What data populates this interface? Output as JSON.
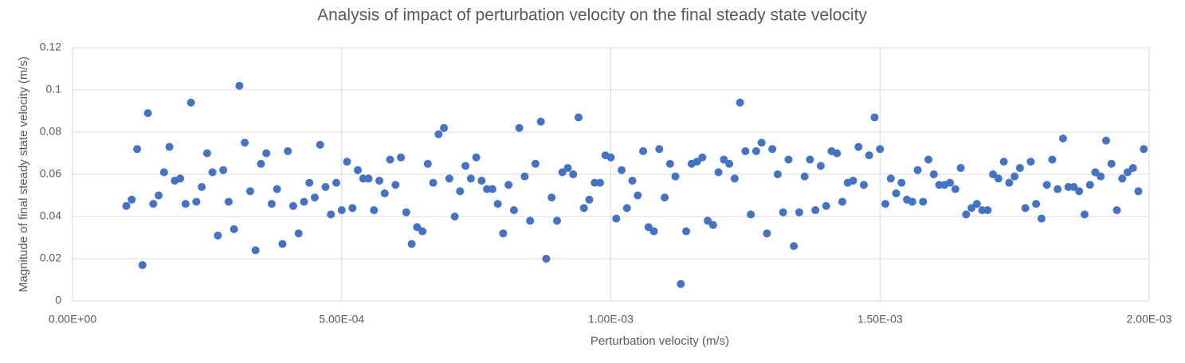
{
  "chart_data": {
    "type": "scatter",
    "title": "Analysis of impact of perturbation velocity on the final steady state velocity",
    "x_label": "Perturbation velocity (m/s)",
    "y_label": "Magnitude of final steady state velocity (m/s)",
    "grid": true,
    "xlim": [
      0,
      0.002
    ],
    "ylim": [
      0,
      0.12
    ],
    "xticks": [
      {
        "value": 0,
        "label": "0.00E+00"
      },
      {
        "value": 0.0005,
        "label": "5.00E-04"
      },
      {
        "value": 0.001,
        "label": "1.00E-03"
      },
      {
        "value": 0.0015,
        "label": "1.50E-03"
      },
      {
        "value": 0.002,
        "label": "2.00E-03"
      }
    ],
    "yticks": [
      0,
      0.02,
      0.04,
      0.06,
      0.08,
      0.1,
      0.12
    ],
    "series": [
      {
        "color": "#4472c4",
        "x": [
          0.0001,
          0.00011,
          0.00012,
          0.00013,
          0.00014,
          0.00015,
          0.00016,
          0.00017,
          0.00018,
          0.00019,
          0.0002,
          0.00021,
          0.00022,
          0.00023,
          0.00024,
          0.00025,
          0.00026,
          0.00027,
          0.00028,
          0.00029,
          0.0003,
          0.00031,
          0.00032,
          0.00033,
          0.00034,
          0.00035,
          0.00036,
          0.00037,
          0.00038,
          0.00039,
          0.0004,
          0.00041,
          0.00042,
          0.00043,
          0.00044,
          0.00045,
          0.00046,
          0.00047,
          0.00048,
          0.00049,
          0.0005,
          0.00051,
          0.00052,
          0.00053,
          0.00054,
          0.00055,
          0.00056,
          0.00057,
          0.00058,
          0.00059,
          0.0006,
          0.00061,
          0.00062,
          0.00063,
          0.00064,
          0.00065,
          0.00066,
          0.00067,
          0.00068,
          0.00069,
          0.0007,
          0.00071,
          0.00072,
          0.00073,
          0.00074,
          0.00075,
          0.00076,
          0.00077,
          0.00078,
          0.00079,
          0.0008,
          0.00081,
          0.00082,
          0.00083,
          0.00084,
          0.00085,
          0.00086,
          0.00087,
          0.00088,
          0.00089,
          0.0009,
          0.00091,
          0.00092,
          0.00093,
          0.00094,
          0.00095,
          0.00096,
          0.00097,
          0.00098,
          0.00099,
          0.001,
          0.00101,
          0.00102,
          0.00103,
          0.00104,
          0.00105,
          0.00106,
          0.00107,
          0.00108,
          0.00109,
          0.0011,
          0.00111,
          0.00112,
          0.00113,
          0.00114,
          0.00115,
          0.00116,
          0.00117,
          0.00118,
          0.00119,
          0.0012,
          0.00121,
          0.00122,
          0.00123,
          0.00124,
          0.00125,
          0.00126,
          0.00127,
          0.00128,
          0.00129,
          0.0013,
          0.00131,
          0.00132,
          0.00133,
          0.00134,
          0.00135,
          0.00136,
          0.00137,
          0.00138,
          0.00139,
          0.0014,
          0.00141,
          0.00142,
          0.00143,
          0.00144,
          0.00145,
          0.00146,
          0.00147,
          0.00148,
          0.00149,
          0.0015,
          0.00151,
          0.00152,
          0.00153,
          0.00154,
          0.00155,
          0.00156,
          0.00157,
          0.00158,
          0.00159,
          0.0016,
          0.00161,
          0.00162,
          0.00163,
          0.00164,
          0.00165,
          0.00166,
          0.00167,
          0.00168,
          0.00169,
          0.0017,
          0.00171,
          0.00172,
          0.00173,
          0.00174,
          0.00175,
          0.00176,
          0.00177,
          0.00178,
          0.00179,
          0.0018,
          0.00181,
          0.00182,
          0.00183,
          0.00184,
          0.00185,
          0.00186,
          0.00187,
          0.00188,
          0.00189,
          0.0019,
          0.00191,
          0.00192,
          0.00193,
          0.00194,
          0.00195,
          0.00196,
          0.00197,
          0.00198,
          0.00199
        ],
        "values": [
          0.045,
          0.048,
          0.072,
          0.017,
          0.089,
          0.046,
          0.05,
          0.061,
          0.073,
          0.057,
          0.058,
          0.046,
          0.094,
          0.047,
          0.054,
          0.07,
          0.061,
          0.031,
          0.062,
          0.047,
          0.034,
          0.102,
          0.075,
          0.052,
          0.024,
          0.065,
          0.07,
          0.046,
          0.053,
          0.027,
          0.071,
          0.045,
          0.032,
          0.047,
          0.056,
          0.049,
          0.074,
          0.054,
          0.041,
          0.056,
          0.043,
          0.066,
          0.044,
          0.062,
          0.058,
          0.058,
          0.043,
          0.057,
          0.051,
          0.067,
          0.055,
          0.068,
          0.042,
          0.027,
          0.035,
          0.033,
          0.065,
          0.056,
          0.079,
          0.082,
          0.058,
          0.04,
          0.052,
          0.064,
          0.058,
          0.068,
          0.057,
          0.053,
          0.053,
          0.046,
          0.032,
          0.055,
          0.043,
          0.082,
          0.059,
          0.038,
          0.065,
          0.085,
          0.02,
          0.049,
          0.038,
          0.061,
          0.063,
          0.06,
          0.087,
          0.044,
          0.048,
          0.056,
          0.056,
          0.069,
          0.068,
          0.039,
          0.062,
          0.044,
          0.057,
          0.05,
          0.071,
          0.035,
          0.033,
          0.072,
          0.049,
          0.065,
          0.059,
          0.008,
          0.033,
          0.065,
          0.066,
          0.068,
          0.038,
          0.036,
          0.061,
          0.067,
          0.065,
          0.058,
          0.094,
          0.071,
          0.041,
          0.071,
          0.075,
          0.032,
          0.072,
          0.06,
          0.042,
          0.067,
          0.026,
          0.042,
          0.059,
          0.067,
          0.043,
          0.064,
          0.045,
          0.071,
          0.07,
          0.047,
          0.056,
          0.057,
          0.073,
          0.055,
          0.069,
          0.087,
          0.072,
          0.046,
          0.058,
          0.051,
          0.056,
          0.048,
          0.047,
          0.062,
          0.047,
          0.067,
          0.06,
          0.055,
          0.055,
          0.056,
          0.053,
          0.063,
          0.041,
          0.044,
          0.046,
          0.043,
          0.043,
          0.06,
          0.058,
          0.066,
          0.056,
          0.059,
          0.063,
          0.044,
          0.066,
          0.046,
          0.039,
          0.055,
          0.067,
          0.053,
          0.077,
          0.054,
          0.054,
          0.052,
          0.041,
          0.055,
          0.061,
          0.059,
          0.076,
          0.065,
          0.043,
          0.058,
          0.061,
          0.063,
          0.052,
          0.072
        ]
      }
    ]
  }
}
